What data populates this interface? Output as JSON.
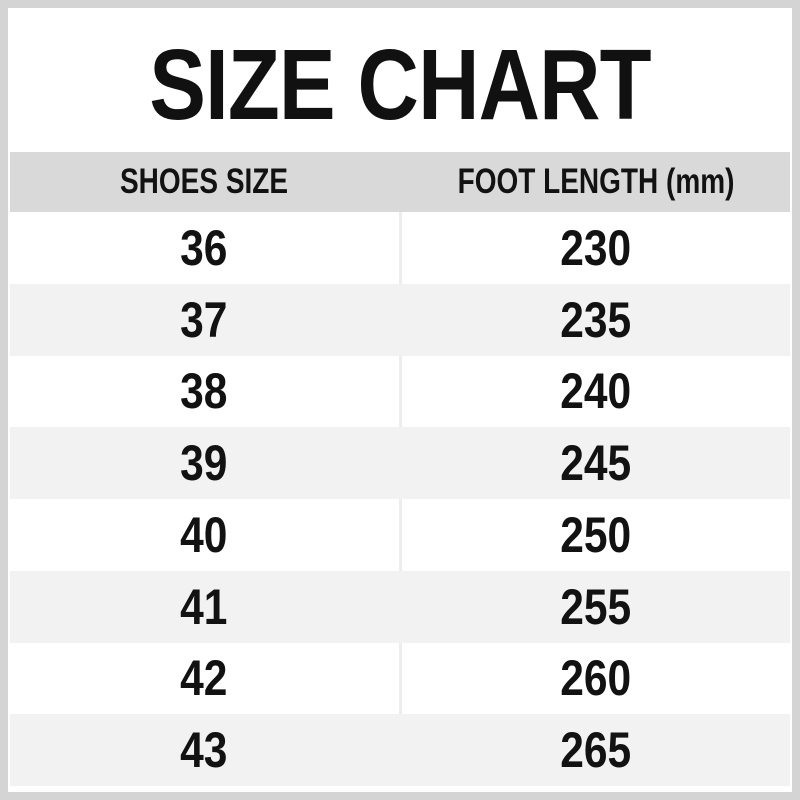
{
  "title": "SIZE CHART",
  "colors": {
    "outer_border": "#d4d4d4",
    "header_bg": "#d9d9d9",
    "row_bg": "#ffffff",
    "row_alt_bg": "#f2f2f2",
    "text": "#141414",
    "divider": "#ededed"
  },
  "table": {
    "columns": [
      "SHOES SIZE",
      "FOOT LENGTH (mm)"
    ],
    "rows": [
      {
        "size": "36",
        "length": "230"
      },
      {
        "size": "37",
        "length": "235"
      },
      {
        "size": "38",
        "length": "240"
      },
      {
        "size": "39",
        "length": "245"
      },
      {
        "size": "40",
        "length": "250"
      },
      {
        "size": "41",
        "length": "255"
      },
      {
        "size": "42",
        "length": "260"
      },
      {
        "size": "43",
        "length": "265"
      }
    ]
  },
  "chart_data": {
    "type": "table",
    "title": "SIZE CHART",
    "columns": [
      "SHOES SIZE",
      "FOOT LENGTH (mm)"
    ],
    "rows": [
      [
        36,
        230
      ],
      [
        37,
        235
      ],
      [
        38,
        240
      ],
      [
        39,
        245
      ],
      [
        40,
        250
      ],
      [
        41,
        255
      ],
      [
        42,
        260
      ],
      [
        43,
        265
      ]
    ]
  }
}
